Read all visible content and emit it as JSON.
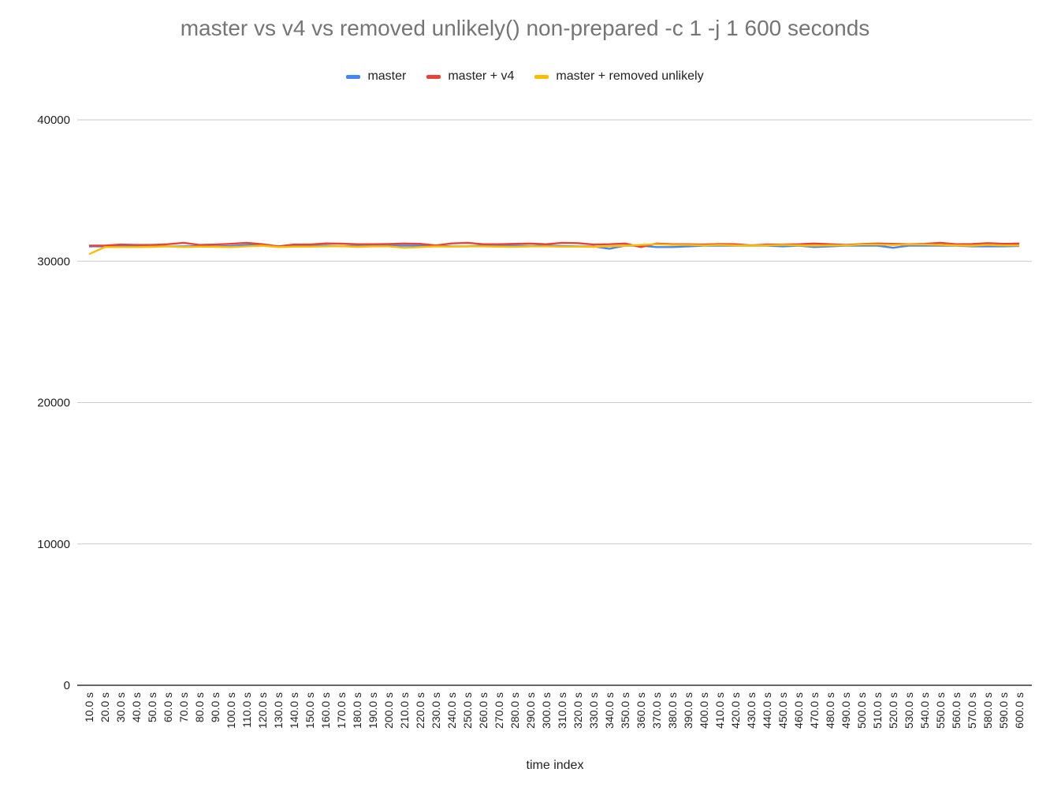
{
  "chart_data": {
    "type": "line",
    "title": "master vs v4 vs removed unlikely() non-prepared -c 1 -j 1 600 seconds",
    "xlabel": "time index",
    "ylabel": "",
    "ylim": [
      0,
      40000
    ],
    "yticks": [
      "0",
      "10000",
      "20000",
      "30000",
      "40000"
    ],
    "grid": true,
    "legend_position": "top",
    "categories": [
      "10.0 s",
      "20.0 s",
      "30.0 s",
      "40.0 s",
      "50.0 s",
      "60.0 s",
      "70.0 s",
      "80.0 s",
      "90.0 s",
      "100.0 s",
      "110.0 s",
      "120.0 s",
      "130.0 s",
      "140.0 s",
      "150.0 s",
      "160.0 s",
      "170.0 s",
      "180.0 s",
      "190.0 s",
      "200.0 s",
      "210.0 s",
      "220.0 s",
      "230.0 s",
      "240.0 s",
      "250.0 s",
      "260.0 s",
      "270.0 s",
      "280.0 s",
      "290.0 s",
      "300.0 s",
      "310.0 s",
      "320.0 s",
      "330.0 s",
      "340.0 s",
      "350.0 s",
      "360.0 s",
      "370.0 s",
      "380.0 s",
      "390.0 s",
      "400.0 s",
      "410.0 s",
      "420.0 s",
      "430.0 s",
      "440.0 s",
      "450.0 s",
      "460.0 s",
      "470.0 s",
      "480.0 s",
      "490.0 s",
      "500.0 s",
      "510.0 s",
      "520.0 s",
      "530.0 s",
      "540.0 s",
      "550.0 s",
      "560.0 s",
      "570.0 s",
      "580.0 s",
      "590.0 s",
      "600.0 s"
    ],
    "series": [
      {
        "name": "master",
        "color": "#4285f4",
        "values": [
          31050,
          31050,
          31100,
          31080,
          31100,
          31050,
          31050,
          31080,
          31050,
          31080,
          31150,
          31150,
          31050,
          31100,
          31100,
          31100,
          31050,
          31100,
          31100,
          31100,
          31100,
          31100,
          31100,
          31050,
          31050,
          31100,
          31100,
          31100,
          31080,
          31100,
          31080,
          31050,
          31050,
          30880,
          31100,
          31100,
          31000,
          31000,
          31050,
          31100,
          31100,
          31100,
          31100,
          31100,
          31050,
          31100,
          31000,
          31050,
          31100,
          31100,
          31100,
          30950,
          31100,
          31100,
          31100,
          31100,
          31050,
          31050,
          31050,
          31080
        ]
      },
      {
        "name": "master + v4",
        "color": "#ea4335",
        "values": [
          31100,
          31100,
          31180,
          31150,
          31150,
          31200,
          31300,
          31150,
          31180,
          31230,
          31300,
          31200,
          31050,
          31180,
          31180,
          31260,
          31240,
          31200,
          31200,
          31220,
          31250,
          31230,
          31120,
          31260,
          31300,
          31200,
          31200,
          31230,
          31250,
          31200,
          31300,
          31280,
          31180,
          31200,
          31250,
          31000,
          31250,
          31200,
          31200,
          31180,
          31220,
          31200,
          31120,
          31180,
          31180,
          31200,
          31250,
          31200,
          31150,
          31220,
          31250,
          31230,
          31200,
          31230,
          31300,
          31200,
          31220,
          31280,
          31230,
          31250
        ]
      },
      {
        "name": "master + removed unlikely",
        "color": "#fbbc04",
        "values": [
          30500,
          31000,
          31000,
          31000,
          31020,
          31050,
          31000,
          31030,
          31020,
          31000,
          31050,
          31100,
          31000,
          31030,
          31030,
          31050,
          31060,
          31020,
          31050,
          31050,
          30950,
          31000,
          31050,
          31030,
          31050,
          31050,
          31030,
          31020,
          31050,
          31050,
          31030,
          31030,
          31020,
          31050,
          31100,
          31150,
          31200,
          31150,
          31150,
          31120,
          31150,
          31120,
          31100,
          31120,
          31150,
          31120,
          31100,
          31120,
          31120,
          31180,
          31180,
          31150,
          31180,
          31180,
          31150,
          31120,
          31100,
          31150,
          31120,
          31120
        ]
      }
    ]
  }
}
